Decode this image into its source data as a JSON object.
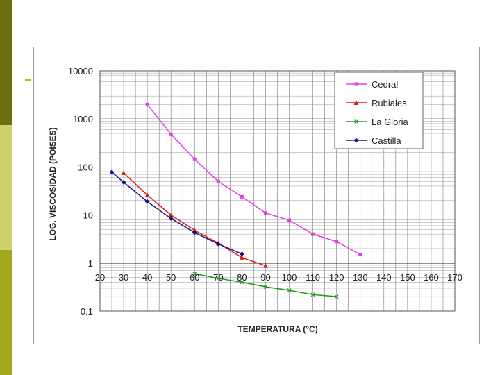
{
  "chart_data": {
    "type": "line",
    "title": "",
    "xlabel": "TEMPERATURA (°C)",
    "ylabel": "LOG. VISCOSIDAD (POISES)",
    "yscale": "log",
    "xlim": [
      20,
      170
    ],
    "ylim": [
      0.1,
      10000
    ],
    "grid": true,
    "legend_position": "top-right",
    "xticks": [
      "20",
      "30",
      "40",
      "50",
      "60",
      "70",
      "80",
      "90",
      "100",
      "110",
      "120",
      "130",
      "140",
      "150",
      "160",
      "170"
    ],
    "yticks": [
      {
        "value": 10000,
        "label": "10000"
      },
      {
        "value": 1000,
        "label": "1000"
      },
      {
        "value": 100,
        "label": "100"
      },
      {
        "value": 10,
        "label": "10"
      },
      {
        "value": 1,
        "label": "1"
      },
      {
        "value": 0.1,
        "label": "0,1"
      }
    ],
    "series": [
      {
        "name": "Cedral",
        "color": "#e040e0",
        "marker": "square",
        "x": [
          40,
          50,
          60,
          70,
          80,
          90,
          100,
          110,
          120,
          130
        ],
        "y": [
          2000,
          480,
          145,
          50,
          24,
          11,
          7.8,
          4,
          2.8,
          1.5
        ]
      },
      {
        "name": "Rubiales",
        "color": "#e01818",
        "marker": "triangle",
        "x": [
          30,
          40,
          50,
          60,
          70,
          80,
          90
        ],
        "y": [
          75,
          26,
          10,
          4.8,
          2.6,
          1.3,
          0.88
        ]
      },
      {
        "name": "La Gloria",
        "color": "#1e9a1e",
        "marker": "x",
        "x": [
          60,
          70,
          80,
          90,
          100,
          110,
          120
        ],
        "y": [
          0.6,
          0.48,
          0.4,
          0.32,
          0.27,
          0.22,
          0.2
        ]
      },
      {
        "name": "Castilla",
        "color": "#101880",
        "marker": "diamond",
        "x": [
          25,
          30,
          40,
          50,
          60,
          70,
          80
        ],
        "y": [
          78,
          48,
          19,
          8.5,
          4.3,
          2.5,
          1.55
        ]
      }
    ]
  }
}
